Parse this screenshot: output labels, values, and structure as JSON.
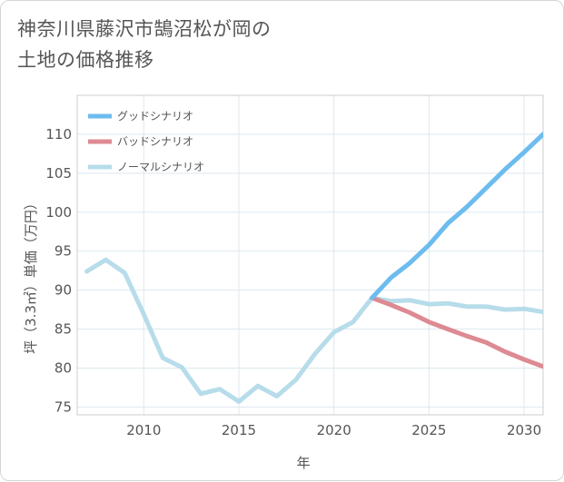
{
  "title_line1": "神奈川県藤沢市鵠沼松が岡の",
  "title_line2": "土地の価格推移",
  "chart_data": {
    "type": "line",
    "xlabel": "年",
    "ylabel": "坪（3.3㎡）単価（万円）",
    "xlim": [
      2006.5,
      2031
    ],
    "ylim": [
      74,
      115
    ],
    "xticks": [
      2010,
      2015,
      2020,
      2025,
      2030
    ],
    "yticks": [
      75,
      80,
      85,
      90,
      95,
      100,
      105,
      110
    ],
    "grid": true,
    "legend_position": "top-left",
    "series": [
      {
        "name": "グッドシナリオ",
        "color": "#6cbcef",
        "x": [
          2022,
          2023,
          2024,
          2025,
          2026,
          2027,
          2028,
          2029,
          2030,
          2031
        ],
        "y": [
          89.0,
          91.6,
          93.5,
          95.8,
          98.6,
          100.7,
          103.1,
          105.5,
          107.7,
          110.0
        ]
      },
      {
        "name": "バッドシナリオ",
        "color": "#dd8a92",
        "x": [
          2022,
          2023,
          2024,
          2025,
          2026,
          2027,
          2028,
          2029,
          2030,
          2031
        ],
        "y": [
          89.0,
          88.1,
          87.1,
          85.9,
          85.0,
          84.1,
          83.3,
          82.1,
          81.1,
          80.2
        ]
      },
      {
        "name": "ノーマルシナリオ",
        "color": "#b7dcea",
        "x": [
          2007,
          2008,
          2009,
          2010,
          2011,
          2012,
          2013,
          2014,
          2015,
          2016,
          2017,
          2018,
          2019,
          2020,
          2021,
          2022,
          2023,
          2024,
          2025,
          2026,
          2027,
          2028,
          2029,
          2030,
          2031
        ],
        "y": [
          92.4,
          93.9,
          92.2,
          86.9,
          81.3,
          80.1,
          76.7,
          77.3,
          75.7,
          77.7,
          76.4,
          78.5,
          81.8,
          84.6,
          85.9,
          89.0,
          88.6,
          88.7,
          88.2,
          88.3,
          87.9,
          87.9,
          87.5,
          87.6,
          87.2
        ]
      }
    ]
  }
}
